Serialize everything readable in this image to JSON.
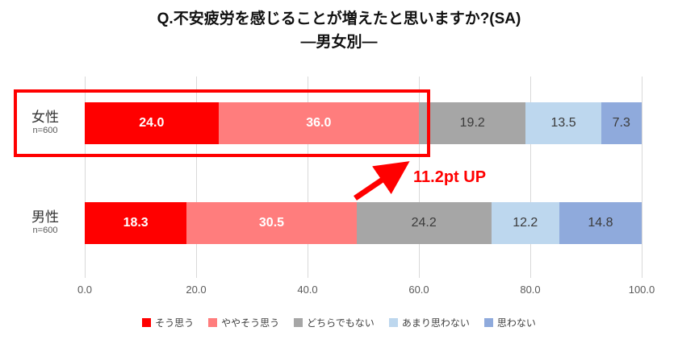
{
  "title": {
    "line1": "Q.不安疲労を感じることが増えたと思いますか?(SA)",
    "line2": "―男女別―"
  },
  "annotation": {
    "text": "11.2pt UP"
  },
  "accent_red": "#ff0000",
  "chart_data": {
    "type": "bar",
    "variant": "horizontal-stacked",
    "title": "Q.不安疲労を感じることが増えたと思いますか?(SA) ―男女別―",
    "categories": [
      "女性",
      "男性"
    ],
    "category_notes": [
      "n=600",
      "n=600"
    ],
    "series": [
      {
        "name": "そう思う",
        "color": "#ff0000",
        "label_color": "#ffffff",
        "label_bold": true,
        "values": [
          24.0,
          18.3
        ]
      },
      {
        "name": "ややそう思う",
        "color": "#ff7d7d",
        "label_color": "#ffffff",
        "label_bold": true,
        "values": [
          36.0,
          30.5
        ]
      },
      {
        "name": "どちらでもない",
        "color": "#a6a6a6",
        "label_color": "#3b3b3b",
        "label_bold": false,
        "values": [
          19.2,
          24.2
        ]
      },
      {
        "name": "あまり思わない",
        "color": "#bdd7ee",
        "label_color": "#3b3b3b",
        "label_bold": false,
        "values": [
          13.5,
          12.2
        ]
      },
      {
        "name": "思わない",
        "color": "#8faadc",
        "label_color": "#3b3b3b",
        "label_bold": false,
        "values": [
          7.3,
          14.8
        ]
      }
    ],
    "x_ticks": [
      "0.0",
      "20.0",
      "40.0",
      "60.0",
      "80.0",
      "100.0"
    ],
    "xlim": [
      0,
      100
    ],
    "grid": true,
    "legend_position": "bottom",
    "highlight": {
      "row": "女性",
      "note": "11.2pt UP"
    }
  }
}
